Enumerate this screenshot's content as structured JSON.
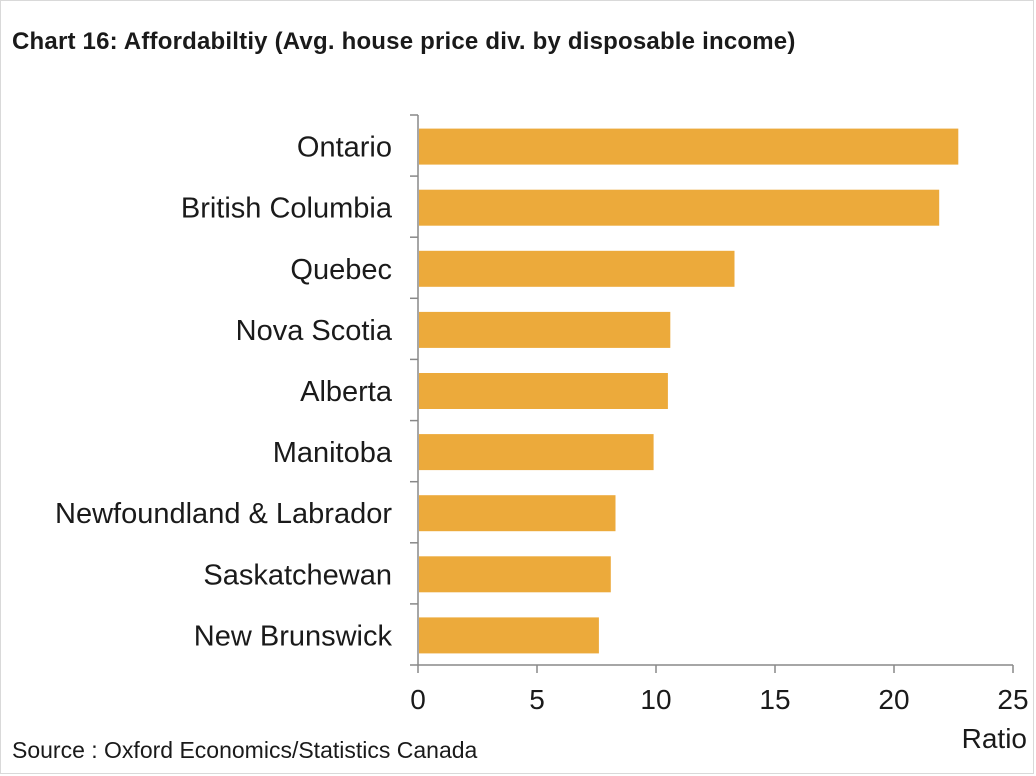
{
  "title": "Chart 16:  Affordabiltiy  (Avg. house price div. by disposable income)",
  "source": "Source : Oxford Economics/Statistics Canada",
  "colors": {
    "bar": "#ECAA3B",
    "axis": "#888888",
    "text": "#1a1a1a"
  },
  "chart_data": {
    "type": "bar",
    "orientation": "horizontal",
    "title": "Chart 16:  Affordabiltiy  (Avg. house price div. by disposable income)",
    "categories": [
      "Ontario",
      "British Columbia",
      "Quebec",
      "Nova Scotia",
      "Alberta",
      "Manitoba",
      "Newfoundland & Labrador",
      "Saskatchewan",
      "New Brunswick"
    ],
    "values": [
      22.7,
      21.9,
      13.3,
      10.6,
      10.5,
      9.9,
      8.3,
      8.1,
      7.6
    ],
    "xlabel": "Ratio",
    "ylabel": "",
    "xlim": [
      0,
      25
    ],
    "xticks": [
      0,
      5,
      10,
      15,
      20,
      25
    ],
    "grid": false,
    "legend": "none"
  }
}
